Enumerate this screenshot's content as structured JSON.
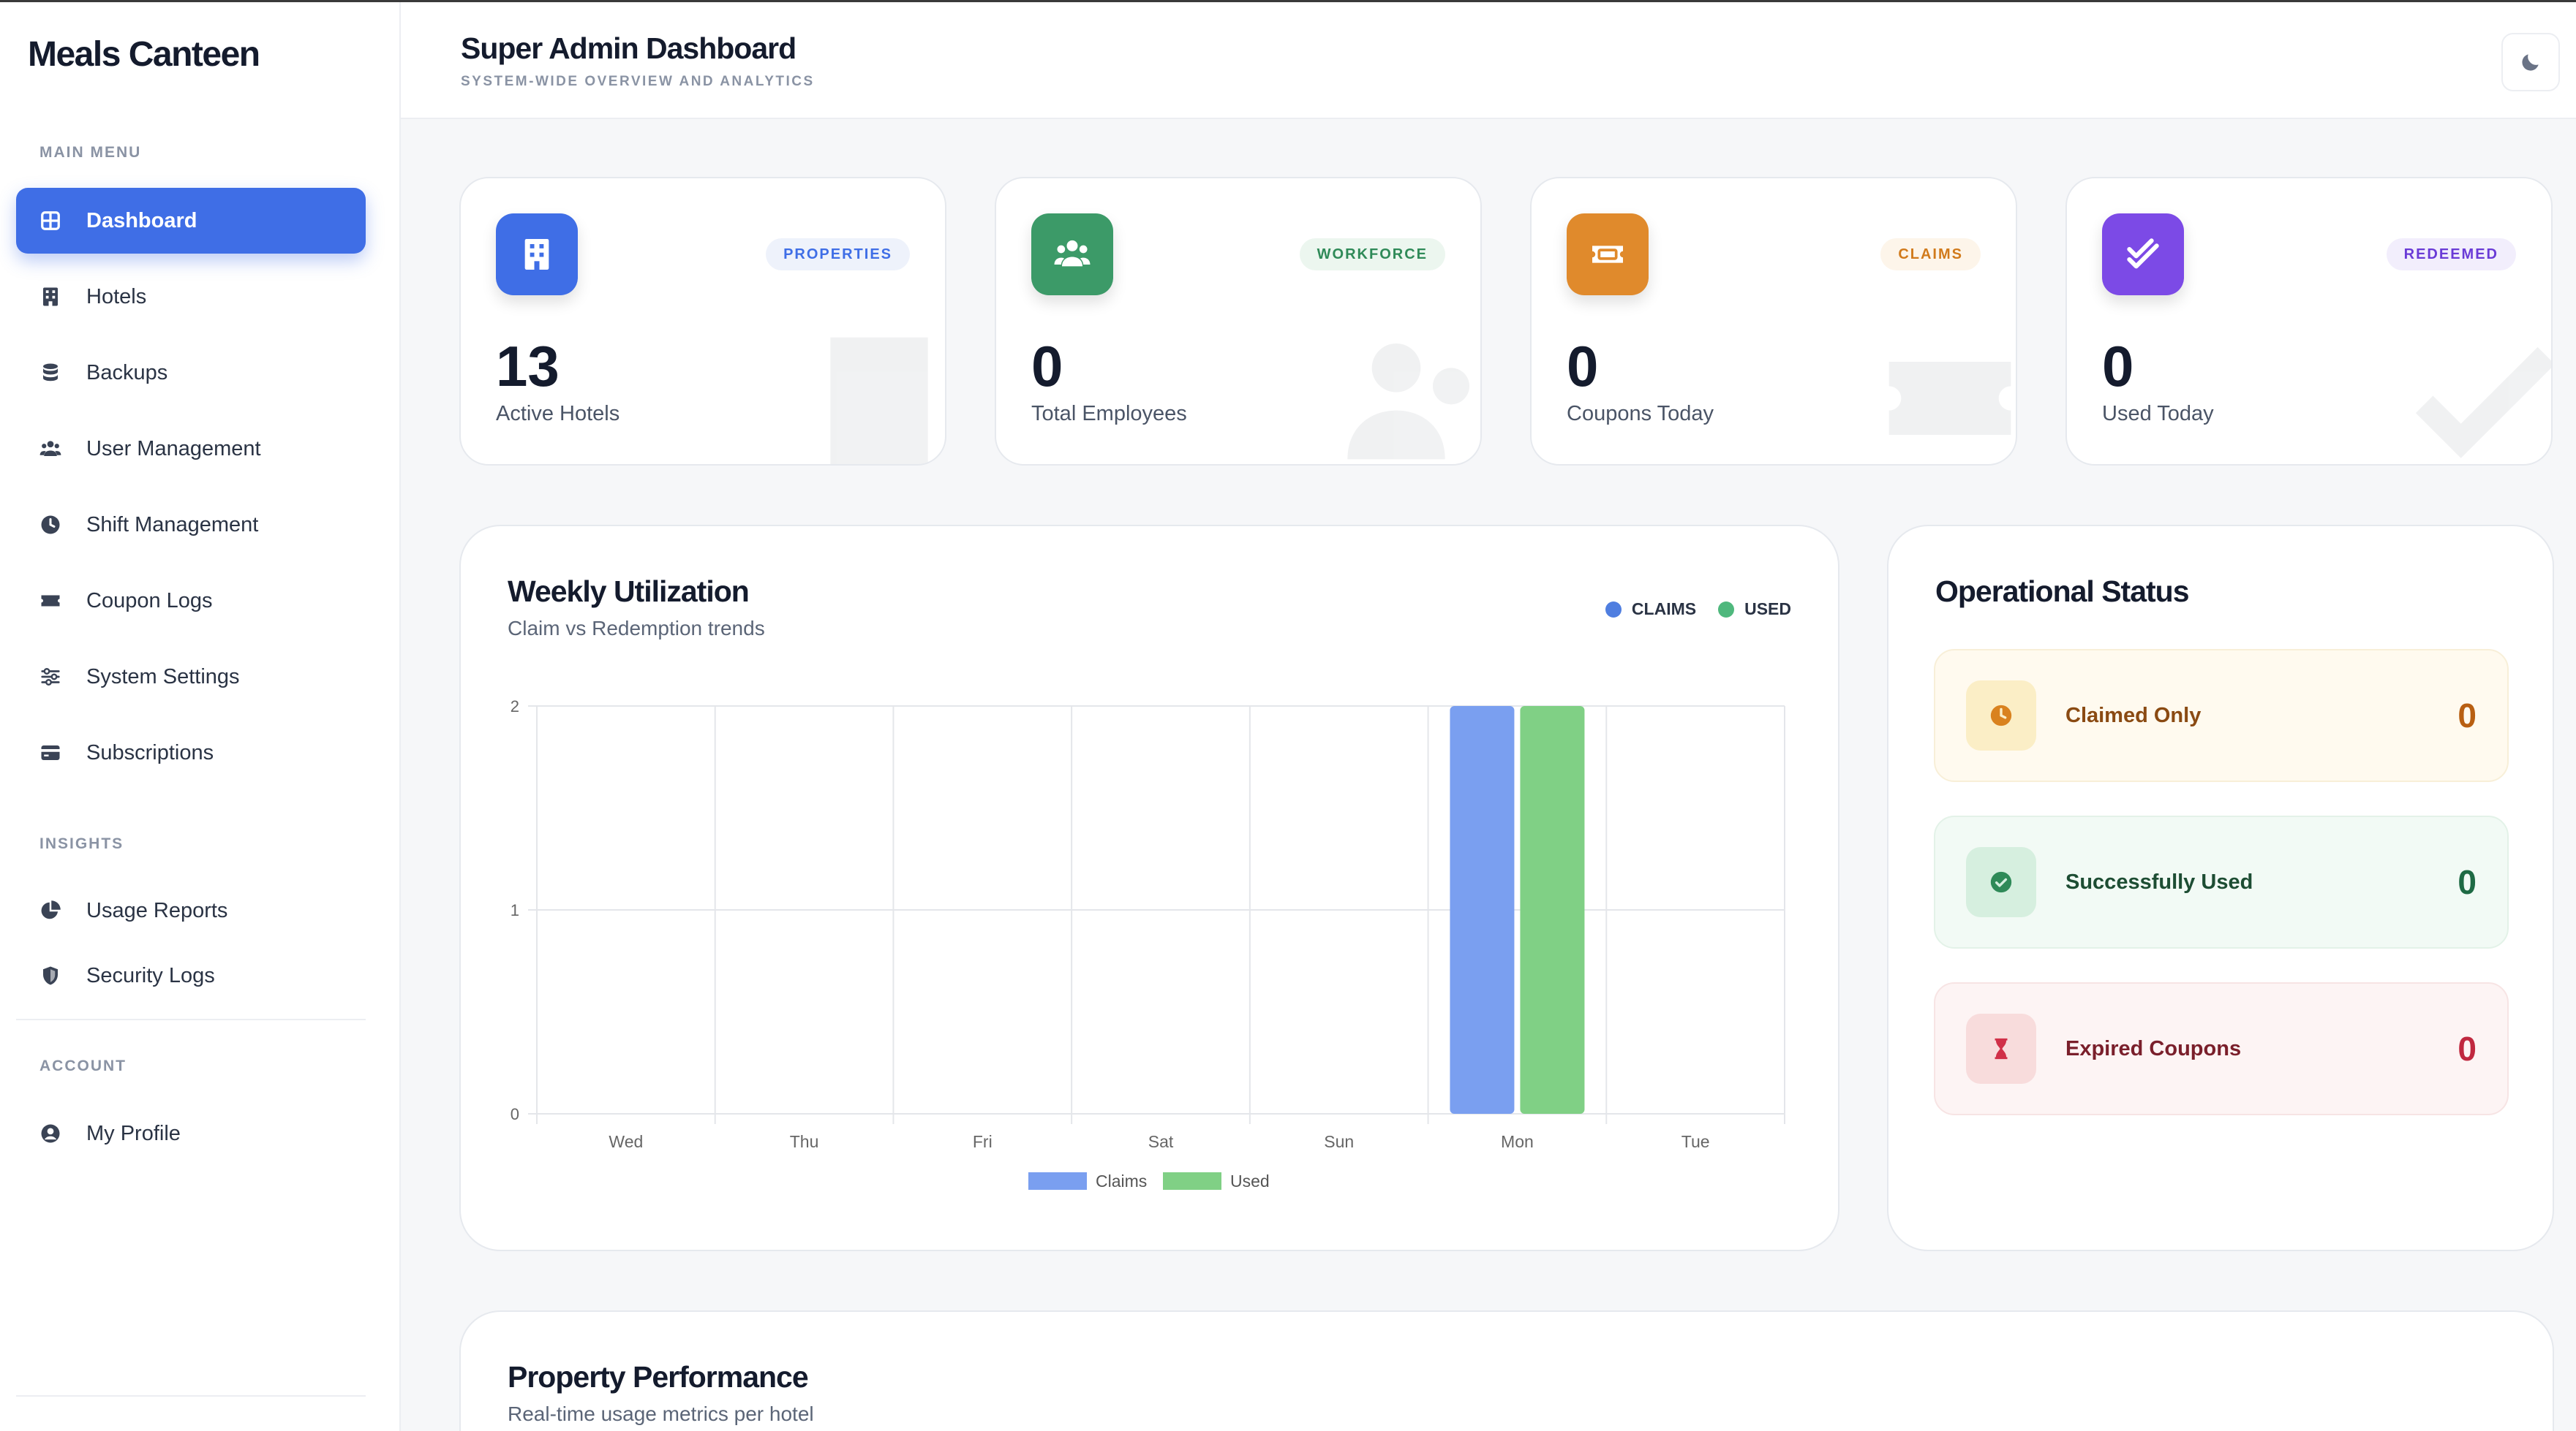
{
  "brand": "Meals Canteen",
  "sidebar": {
    "sections": {
      "main": "MAIN MENU",
      "insights": "INSIGHTS",
      "account": "ACCOUNT"
    },
    "items": [
      {
        "label": "Dashboard",
        "icon": "grid-icon",
        "active": true
      },
      {
        "label": "Hotels",
        "icon": "building-icon"
      },
      {
        "label": "Backups",
        "icon": "database-icon"
      },
      {
        "label": "User Management",
        "icon": "users-icon"
      },
      {
        "label": "Shift Management",
        "icon": "clock-icon"
      },
      {
        "label": "Coupon Logs",
        "icon": "ticket-icon"
      },
      {
        "label": "System Settings",
        "icon": "sliders-icon"
      },
      {
        "label": "Subscriptions",
        "icon": "credit-card-icon"
      },
      {
        "label": "Usage Reports",
        "icon": "pie-chart-icon"
      },
      {
        "label": "Security Logs",
        "icon": "shield-icon"
      },
      {
        "label": "My Profile",
        "icon": "user-circle-icon"
      }
    ]
  },
  "header": {
    "title": "Super Admin Dashboard",
    "subtitle": "SYSTEM-WIDE OVERVIEW AND ANALYTICS",
    "theme_toggle_icon": "moon-icon"
  },
  "stats": [
    {
      "badge": "PROPERTIES",
      "value": "13",
      "label": "Active Hotels",
      "color": "#3f6ee6",
      "badge_bg": "#eef2fb",
      "badge_color": "#3f6ee6",
      "icon": "building-icon"
    },
    {
      "badge": "WORKFORCE",
      "value": "0",
      "label": "Total Employees",
      "color": "#3c9a68",
      "badge_bg": "#ecf6ef",
      "badge_color": "#2f8a58",
      "icon": "users-icon"
    },
    {
      "badge": "CLAIMS",
      "value": "0",
      "label": "Coupons Today",
      "color": "#e08a2c",
      "badge_bg": "#fdf5ea",
      "badge_color": "#d17a1b",
      "icon": "ticket-icon"
    },
    {
      "badge": "REDEEMED",
      "value": "0",
      "label": "Used Today",
      "color": "#7c4ae6",
      "badge_bg": "#f2eefc",
      "badge_color": "#6a3bd6",
      "icon": "double-check-icon"
    }
  ],
  "weekly": {
    "title": "Weekly Utilization",
    "subtitle": "Claim vs Redemption trends",
    "legend_top": [
      {
        "label": "CLAIMS",
        "color": "#4f7ee0"
      },
      {
        "label": "USED",
        "color": "#4fb87d"
      }
    ]
  },
  "chart_data": {
    "type": "bar",
    "categories": [
      "Wed",
      "Thu",
      "Fri",
      "Sat",
      "Sun",
      "Mon",
      "Tue"
    ],
    "series": [
      {
        "name": "Claims",
        "values": [
          0,
          0,
          0,
          0,
          0,
          2,
          0
        ],
        "color": "#7a9ff0"
      },
      {
        "name": "Used",
        "values": [
          0,
          0,
          0,
          0,
          0,
          2,
          0
        ],
        "color": "#80d085"
      }
    ],
    "yticks": [
      "0",
      "1",
      "2"
    ],
    "ylim": [
      0,
      2
    ],
    "grid": true,
    "legend": "bottom"
  },
  "status": {
    "title": "Operational Status",
    "rows": [
      {
        "label": "Claimed Only",
        "value": "0",
        "icon": "clock-icon",
        "bg": "#fffaef",
        "border": "#f8efd8",
        "icon_bg": "#fbeec6",
        "color": "#8a4a12",
        "value_color": "#b85f12",
        "icon_color": "#d9821f"
      },
      {
        "label": "Successfully Used",
        "value": "0",
        "icon": "check-circle-icon",
        "bg": "#f2faf5",
        "border": "#e3f2e8",
        "icon_bg": "#d6efdf",
        "color": "#1d4d33",
        "value_color": "#1e6a44",
        "icon_color": "#2f8a58"
      },
      {
        "label": "Expired Coupons",
        "value": "0",
        "icon": "hourglass-icon",
        "bg": "#fdf4f4",
        "border": "#f7e4e4",
        "icon_bg": "#f8dcdc",
        "color": "#7a1f2b",
        "value_color": "#c0283f",
        "icon_color": "#d03048"
      }
    ]
  },
  "performance": {
    "title": "Property Performance",
    "subtitle": "Real-time usage metrics per hotel"
  }
}
